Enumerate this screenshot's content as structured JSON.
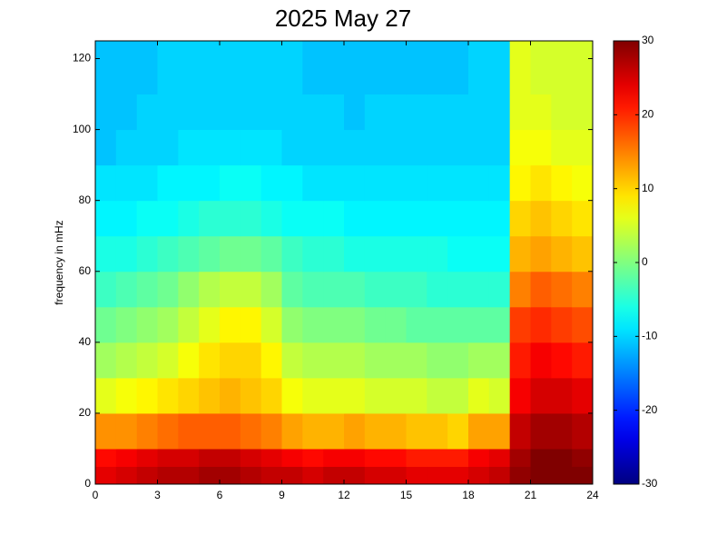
{
  "chart_data": {
    "type": "heatmap",
    "title": "2025 May 27",
    "y_label": "frequency in mHz",
    "colormap": "jet",
    "xbins": [
      0,
      1,
      2,
      3,
      4,
      5,
      6,
      7,
      8,
      9,
      10,
      11,
      12,
      13,
      14,
      15,
      16,
      17,
      18,
      19,
      20,
      21,
      22,
      23,
      24
    ],
    "ybins": [
      0,
      5,
      10,
      20,
      30,
      40,
      50,
      60,
      70,
      80,
      90,
      100,
      110,
      125
    ],
    "z": [
      [
        24,
        25,
        26,
        27,
        27,
        28,
        28,
        27,
        26,
        26,
        25,
        26,
        26,
        25,
        25,
        24,
        24,
        24,
        25,
        26,
        29,
        30,
        30,
        30
      ],
      [
        22,
        23,
        24,
        25,
        25,
        26,
        26,
        25,
        24,
        23,
        22,
        23,
        23,
        22,
        22,
        21,
        21,
        21,
        23,
        24,
        28,
        30,
        30,
        29
      ],
      [
        14,
        14,
        15,
        16,
        17,
        17,
        17,
        16,
        15,
        13,
        12,
        12,
        13,
        12,
        12,
        11,
        11,
        10,
        13,
        13,
        26,
        28,
        28,
        27
      ],
      [
        6,
        7,
        8,
        9,
        10,
        11,
        12,
        11,
        10,
        7,
        6,
        6,
        6,
        5,
        5,
        5,
        4,
        4,
        6,
        5,
        23,
        25,
        25,
        24
      ],
      [
        2,
        3,
        4,
        5,
        7,
        9,
        10,
        10,
        8,
        4,
        3,
        3,
        3,
        2,
        2,
        2,
        1,
        1,
        2,
        2,
        21,
        23,
        22,
        21
      ],
      [
        -1,
        0,
        1,
        2,
        4,
        6,
        8,
        8,
        5,
        1,
        0,
        0,
        0,
        -1,
        -1,
        -2,
        -2,
        -2,
        -2,
        -2,
        19,
        20,
        19,
        18
      ],
      [
        -4,
        -3,
        -2,
        -1,
        1,
        3,
        4,
        4,
        2,
        -2,
        -3,
        -3,
        -3,
        -4,
        -4,
        -4,
        -5,
        -5,
        -5,
        -5,
        15,
        17,
        16,
        15
      ],
      [
        -6,
        -6,
        -5,
        -4,
        -3,
        -2,
        -1,
        -1,
        -2,
        -4,
        -5,
        -5,
        -6,
        -6,
        -6,
        -6,
        -6,
        -7,
        -7,
        -7,
        12,
        13,
        12,
        11
      ],
      [
        -8,
        -8,
        -7,
        -7,
        -6,
        -5,
        -5,
        -5,
        -6,
        -7,
        -7,
        -7,
        -8,
        -8,
        -8,
        -8,
        -8,
        -8,
        -8,
        -8,
        10,
        11,
        10,
        9
      ],
      [
        -9,
        -9,
        -9,
        -8,
        -8,
        -8,
        -7,
        -7,
        -8,
        -8,
        -9,
        -9,
        -9,
        -9,
        -9,
        -9,
        -9,
        -9,
        -9,
        -9,
        8,
        9,
        8,
        7
      ],
      [
        -11,
        -10,
        -10,
        -10,
        -9,
        -9,
        -9,
        -9,
        -9,
        -10,
        -10,
        -10,
        -10,
        -10,
        -10,
        -10,
        -10,
        -10,
        -10,
        -10,
        7,
        7,
        6,
        6
      ],
      [
        -11,
        -11,
        -10,
        -10,
        -10,
        -10,
        -10,
        -10,
        -10,
        -10,
        -10,
        -10,
        -11,
        -10,
        -10,
        -10,
        -10,
        -10,
        -10,
        -10,
        6,
        6,
        5,
        5
      ],
      [
        -11,
        -11,
        -11,
        -10,
        -10,
        -10,
        -10,
        -10,
        -10,
        -10,
        -11,
        -11,
        -11,
        -11,
        -11,
        -11,
        -11,
        -11,
        -10,
        -10,
        6,
        5,
        5,
        5
      ]
    ],
    "xlim": [
      0,
      24
    ],
    "xticks": [
      0,
      3,
      6,
      9,
      12,
      15,
      18,
      21,
      24
    ],
    "ylim": [
      0,
      125
    ],
    "yticks": [
      0,
      20,
      40,
      60,
      80,
      100,
      120
    ],
    "clim": [
      -30,
      30
    ],
    "cticks": [
      -30,
      -20,
      -10,
      0,
      10,
      20,
      30
    ]
  }
}
